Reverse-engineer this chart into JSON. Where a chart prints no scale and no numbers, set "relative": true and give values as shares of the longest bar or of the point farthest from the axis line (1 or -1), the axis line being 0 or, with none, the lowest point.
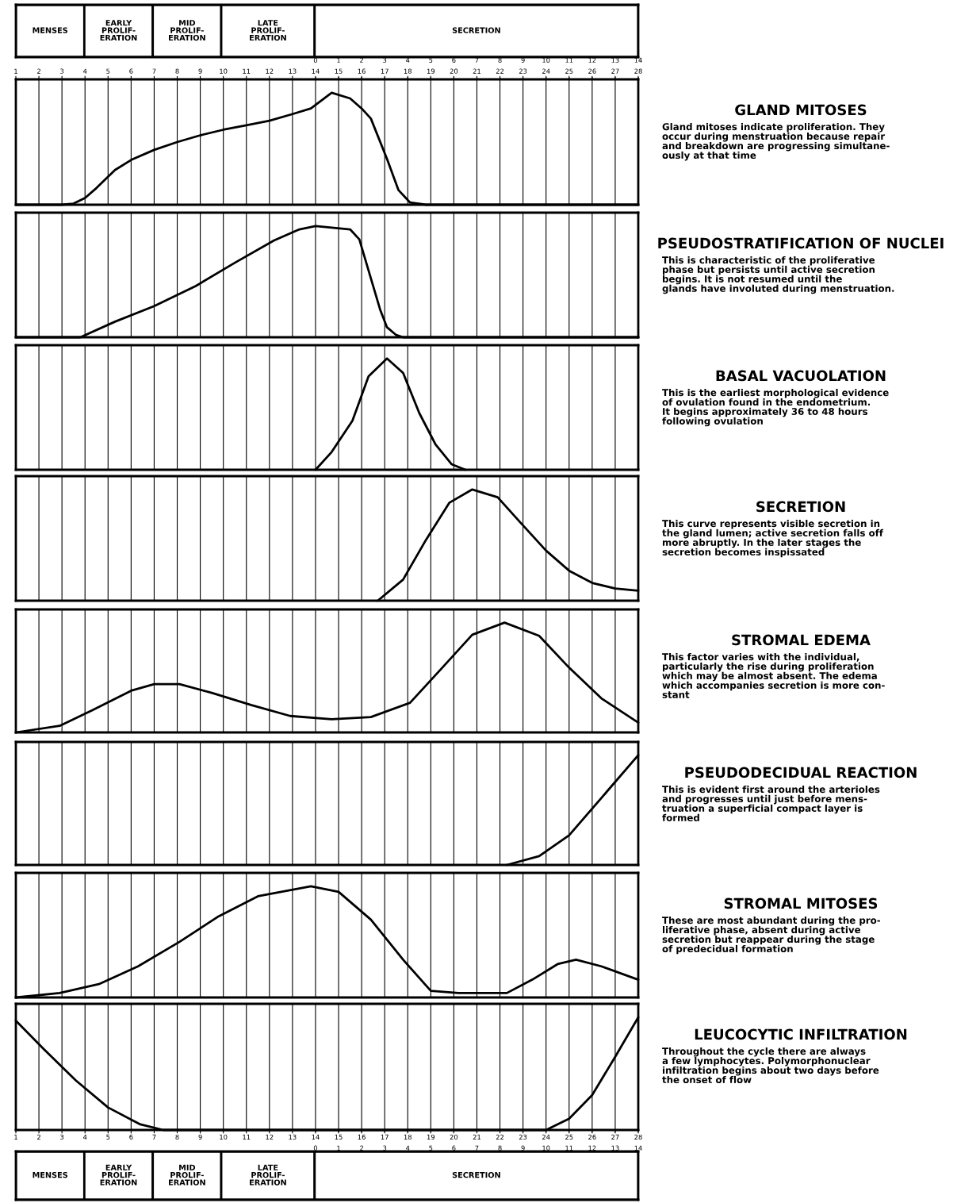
{
  "chart_data": [
    {
      "type": "bar",
      "orientation": "horizontal",
      "stacked": true,
      "relative": true,
      "categories": [
        null
      ],
      "tick_labels": false,
      "series": [
        {
          "name": "MENSES",
          "color": "#ffffff",
          "values": [
            0.11
          ]
        },
        {
          "name": "EARLY\nPROLIF-\nERATION",
          "color": "#ffffff",
          "values": [
            0.11
          ]
        },
        {
          "name": "MID\nPROLIF-\nERATION",
          "color": "#ffffff",
          "values": [
            0.11
          ]
        },
        {
          "name": "LATE\nPROLIF-\nERATION",
          "color": "#ffffff",
          "values": [
            0.15
          ]
        },
        {
          "name": "SECRETION",
          "color": "#ffffff",
          "values": [
            0.52
          ]
        }
      ]
    },
    {
      "type": "line",
      "relative": true,
      "annotations": [
        "GLAND MITOSES",
        "Gland mitoses indicate proliferation. They\noccur during menstruation because repair\nand breakdown are progressing simultane-\nously at that time"
      ],
      "xlim": [
        1,
        28
      ],
      "xticks": [
        1,
        2,
        3,
        4,
        5,
        6,
        7,
        8,
        9,
        10,
        11,
        12,
        13,
        14,
        15,
        16,
        17,
        18,
        19,
        20,
        21,
        22,
        23,
        24,
        25,
        26,
        27,
        28
      ],
      "x2lim": [
        -13,
        14
      ],
      "x2ticks": [
        0,
        1,
        2,
        3,
        4,
        5,
        6,
        7,
        8,
        9,
        10,
        11,
        12,
        13,
        14
      ],
      "tick_labels": "x",
      "grid": "x",
      "line_style": "solid",
      "series": [
        {
          "color": "#000000",
          "x": [
            1,
            3,
            3.5,
            4,
            4.5,
            5.3,
            6,
            7,
            8,
            9,
            10,
            11,
            12,
            13,
            13.8,
            14.7,
            15.5,
            16,
            16.4,
            17.1,
            17.6,
            18.1,
            18.8,
            20,
            28
          ],
          "values": [
            0,
            0,
            0.01,
            0.06,
            0.15,
            0.31,
            0.4,
            0.49,
            0.56,
            0.62,
            0.67,
            0.71,
            0.75,
            0.81,
            0.86,
            1,
            0.95,
            0.86,
            0.77,
            0.41,
            0.13,
            0.02,
            0,
            0,
            0
          ]
        }
      ]
    },
    {
      "type": "line",
      "relative": true,
      "annotations": [
        "PSEUDOSTRATIFICATION OF NUCLEI",
        "This is characteristic of the proliferative\nphase but persists until active secretion\nbegins. It is not resumed until the\nglands have involuted during menstruation."
      ],
      "xlim": [
        1,
        28
      ],
      "xticks": [
        1,
        2,
        3,
        4,
        5,
        6,
        7,
        8,
        9,
        10,
        11,
        12,
        13,
        14,
        15,
        16,
        17,
        18,
        19,
        20,
        21,
        22,
        23,
        24,
        25,
        26,
        27,
        28
      ],
      "tick_labels": false,
      "grid": "x",
      "line_style": "solid",
      "series": [
        {
          "color": "#000000",
          "x": [
            1,
            3.8,
            5.3,
            7,
            8.8,
            10.5,
            12.2,
            13.3,
            14,
            15.5,
            15.9,
            16.3,
            16.8,
            17.1,
            17.5,
            17.8,
            28
          ],
          "values": [
            0,
            0,
            0.14,
            0.28,
            0.46,
            0.67,
            0.87,
            0.97,
            1,
            0.97,
            0.88,
            0.6,
            0.25,
            0.09,
            0.02,
            0,
            0
          ]
        }
      ]
    },
    {
      "type": "line",
      "relative": true,
      "annotations": [
        "BASAL VACUOLATION",
        "This is the earliest morphological evidence\nof ovulation found in the endometrium.\nIt begins approximately 36 to 48 hours\nfollowing ovulation"
      ],
      "xlim": [
        1,
        28
      ],
      "xticks": [
        1,
        2,
        3,
        4,
        5,
        6,
        7,
        8,
        9,
        10,
        11,
        12,
        13,
        14,
        15,
        16,
        17,
        18,
        19,
        20,
        21,
        22,
        23,
        24,
        25,
        26,
        27,
        28
      ],
      "tick_labels": false,
      "grid": "x",
      "line_style": "solid",
      "series": [
        {
          "color": "#000000",
          "x": [
            14,
            14.7,
            15.6,
            16.3,
            17.1,
            17.8,
            18.5,
            19.2,
            19.9,
            20.5
          ],
          "values": [
            0,
            0.16,
            0.44,
            0.84,
            1,
            0.87,
            0.51,
            0.23,
            0.05,
            0
          ]
        }
      ]
    },
    {
      "type": "line",
      "relative": true,
      "annotations": [
        "SECRETION",
        "This curve represents visible secretion in\nthe gland lumen; active secretion falls off\nmore abruptly. In the later stages the\nsecretion becomes inspissated"
      ],
      "xlim": [
        1,
        28
      ],
      "xticks": [
        1,
        2,
        3,
        4,
        5,
        6,
        7,
        8,
        9,
        10,
        11,
        12,
        13,
        14,
        15,
        16,
        17,
        18,
        19,
        20,
        21,
        22,
        23,
        24,
        25,
        26,
        27,
        28
      ],
      "tick_labels": false,
      "grid": "x",
      "line_style": "solid",
      "series": [
        {
          "color": "#000000",
          "x": [
            16.7,
            17.8,
            18.8,
            19.8,
            20.8,
            21.9,
            22.9,
            24,
            25,
            26,
            27,
            28
          ],
          "values": [
            0,
            0.19,
            0.55,
            0.88,
            1,
            0.93,
            0.7,
            0.45,
            0.27,
            0.16,
            0.11,
            0.09
          ]
        }
      ]
    },
    {
      "type": "line",
      "relative": true,
      "annotations": [
        "STROMAL EDEMA",
        "This factor varies with the individual,\nparticularly the rise during proliferation\nwhich may be almost absent. The edema\nwhich accompanies secretion is more con-\nstant"
      ],
      "xlim": [
        1,
        28
      ],
      "xticks": [
        1,
        2,
        3,
        4,
        5,
        6,
        7,
        8,
        9,
        10,
        11,
        12,
        13,
        14,
        15,
        16,
        17,
        18,
        19,
        20,
        21,
        22,
        23,
        24,
        25,
        26,
        27,
        28
      ],
      "tick_labels": false,
      "grid": "x",
      "line_style": "solid",
      "series": [
        {
          "color": "#000000",
          "x": [
            1,
            2.9,
            4.3,
            6,
            7,
            8.1,
            9.5,
            11.2,
            12.9,
            14.7,
            16.4,
            18.1,
            19.5,
            20.8,
            22.2,
            23.7,
            25,
            26.4,
            28
          ],
          "values": [
            0,
            0.06,
            0.2,
            0.38,
            0.44,
            0.44,
            0.36,
            0.25,
            0.15,
            0.12,
            0.14,
            0.27,
            0.59,
            0.89,
            1,
            0.88,
            0.59,
            0.31,
            0.09
          ]
        }
      ]
    },
    {
      "type": "line",
      "relative": true,
      "annotations": [
        "PSEUDODECIDUAL REACTION",
        "This is evident first around the arterioles\nand progresses until just before mens-\ntruation a superficial compact layer is\nformed"
      ],
      "xlim": [
        1,
        28
      ],
      "xticks": [
        1,
        2,
        3,
        4,
        5,
        6,
        7,
        8,
        9,
        10,
        11,
        12,
        13,
        14,
        15,
        16,
        17,
        18,
        19,
        20,
        21,
        22,
        23,
        24,
        25,
        26,
        27,
        28
      ],
      "tick_labels": false,
      "grid": "x",
      "line_style": "solid",
      "series": [
        {
          "color": "#000000",
          "x": [
            22.3,
            23.7,
            25,
            26.4,
            28
          ],
          "values": [
            0,
            0.08,
            0.27,
            0.61,
            1
          ]
        }
      ]
    },
    {
      "type": "line",
      "relative": true,
      "annotations": [
        "STROMAL MITOSES",
        "These are most abundant during the pro-\nliferative phase, absent during active\nsecretion but reappear during the stage\nof predecidual formation"
      ],
      "xlim": [
        1,
        28
      ],
      "xticks": [
        1,
        2,
        3,
        4,
        5,
        6,
        7,
        8,
        9,
        10,
        11,
        12,
        13,
        14,
        15,
        16,
        17,
        18,
        19,
        20,
        21,
        22,
        23,
        24,
        25,
        26,
        27,
        28
      ],
      "tick_labels": false,
      "grid": "x",
      "line_style": "solid",
      "series": [
        {
          "color": "#000000",
          "x": [
            1,
            2.9,
            4.6,
            6.3,
            8.1,
            9.8,
            11.5,
            13.8,
            15,
            16.4,
            17.8,
            19,
            20.2,
            22.3,
            23.4,
            24.5,
            25.3,
            26.4,
            28
          ],
          "values": [
            0,
            0.04,
            0.12,
            0.28,
            0.5,
            0.73,
            0.91,
            1,
            0.95,
            0.7,
            0.34,
            0.06,
            0.04,
            0.04,
            0.16,
            0.3,
            0.34,
            0.28,
            0.16
          ]
        }
      ]
    },
    {
      "type": "line",
      "relative": true,
      "annotations": [
        "LEUCOCYTIC INFILTRATION",
        "Throughout the cycle there are always\na few lymphocytes. Polymorphonuclear\ninfiltration begins about two days before\nthe onset of flow"
      ],
      "xlim": [
        1,
        28
      ],
      "xticks": [
        1,
        2,
        3,
        4,
        5,
        6,
        7,
        8,
        9,
        10,
        11,
        12,
        13,
        14,
        15,
        16,
        17,
        18,
        19,
        20,
        21,
        22,
        23,
        24,
        25,
        26,
        27,
        28
      ],
      "x2lim": [
        -13,
        14
      ],
      "x2ticks": [
        0,
        1,
        2,
        3,
        4,
        5,
        6,
        7,
        8,
        9,
        10,
        11,
        12,
        13,
        14
      ],
      "tick_labels": "x",
      "grid": "x",
      "line_style": "solid",
      "series": [
        {
          "color": "#000000",
          "x": [
            1,
            2.2,
            3.6,
            5,
            6.4,
            7.4,
            24,
            25,
            26,
            27,
            28
          ],
          "values": [
            0.97,
            0.72,
            0.44,
            0.2,
            0.05,
            0,
            0,
            0.1,
            0.31,
            0.65,
            1
          ]
        }
      ]
    },
    {
      "type": "bar",
      "orientation": "horizontal",
      "stacked": true,
      "relative": true,
      "categories": [
        null
      ],
      "tick_labels": false,
      "series": [
        {
          "name": "MENSES",
          "color": "#ffffff",
          "values": [
            0.11
          ]
        },
        {
          "name": "EARLY\nPROLIF-\nERATION",
          "color": "#ffffff",
          "values": [
            0.11
          ]
        },
        {
          "name": "MID\nPROLIF-\nERATION",
          "color": "#ffffff",
          "values": [
            0.11
          ]
        },
        {
          "name": "LATE\nPROLIF-\nERATION",
          "color": "#ffffff",
          "values": [
            0.15
          ]
        },
        {
          "name": "SECRETION",
          "color": "#ffffff",
          "values": [
            0.52
          ]
        }
      ]
    }
  ]
}
